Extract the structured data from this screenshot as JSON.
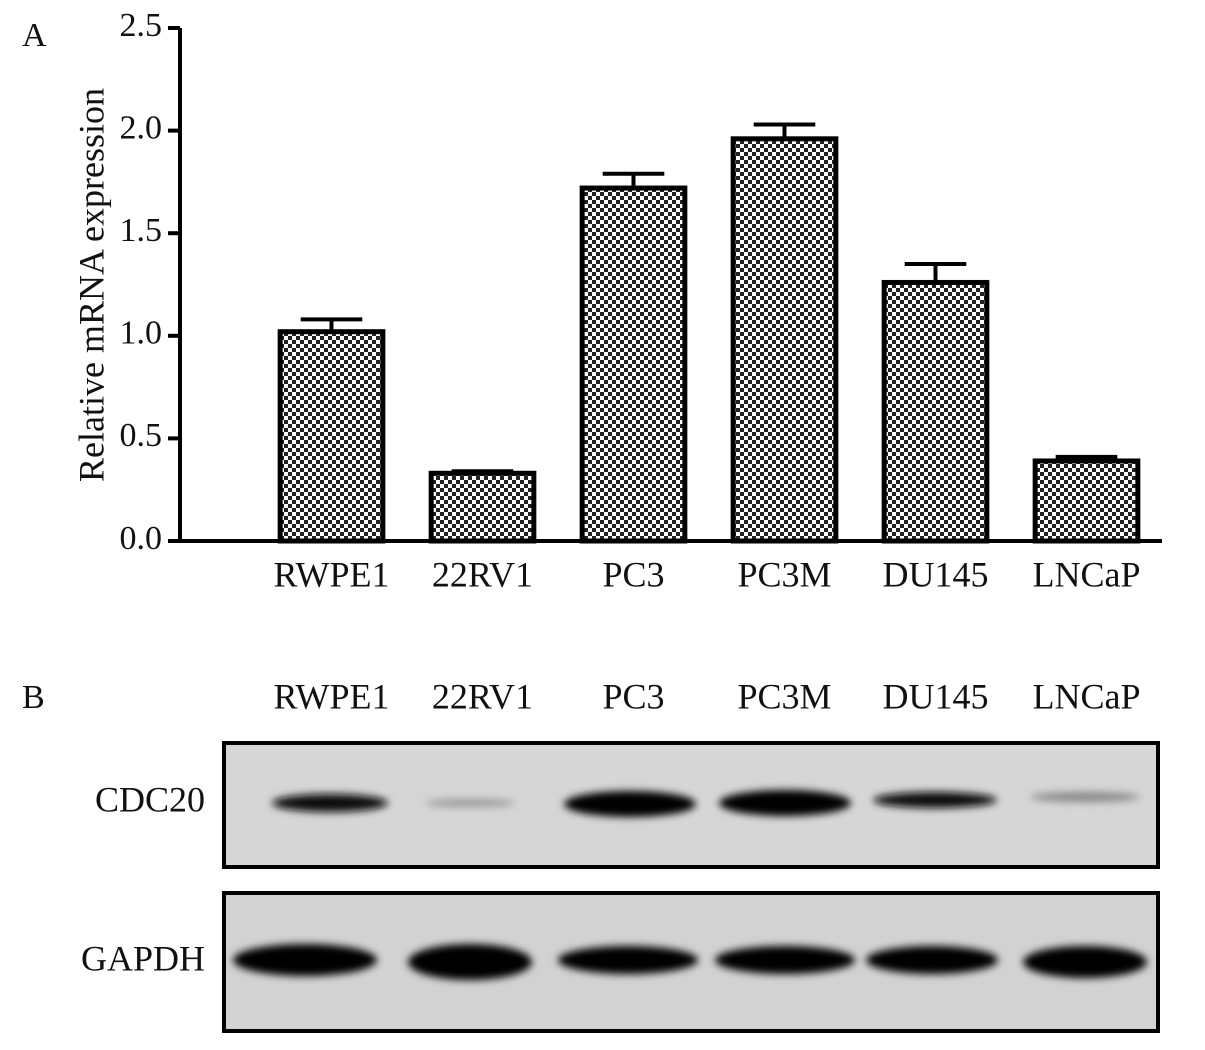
{
  "chart_data": {
    "type": "bar",
    "panel_label": "A",
    "y_label": "Relative mRNA expression",
    "categories": [
      "RWPE1",
      "22RV1",
      "PC3",
      "PC3M",
      "DU145",
      "LNCaP"
    ],
    "values": [
      1.02,
      0.33,
      1.72,
      1.96,
      1.26,
      0.39
    ],
    "errors": [
      0.06,
      0.01,
      0.07,
      0.07,
      0.09,
      0.02
    ],
    "ylim": [
      0,
      2.5
    ],
    "yticks": [
      {
        "value": 0,
        "label": "0.0"
      },
      0.5,
      {
        "value": 1,
        "label": "1.0"
      },
      1.5,
      {
        "value": 2,
        "label": "2.0"
      },
      2.5
    ],
    "color": "#000000"
  },
  "blot": {
    "panel_label": "B",
    "lanes": [
      "RWPE1",
      "22RV1",
      "PC3",
      "PC3M",
      "DU145",
      "LNCaP"
    ],
    "rows": [
      {
        "label": "CDC20"
      },
      {
        "label": "GAPDH"
      }
    ]
  }
}
